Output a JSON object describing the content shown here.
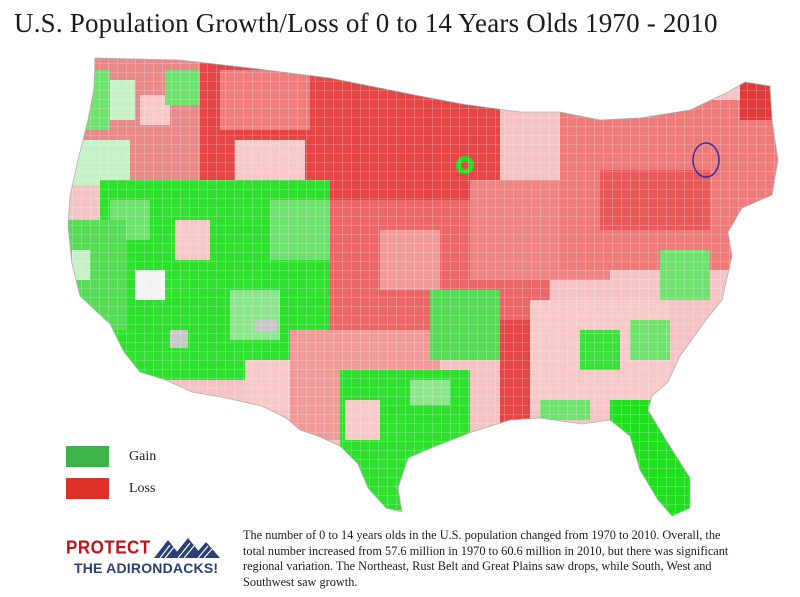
{
  "title": "U.S. Population Growth/Loss of 0 to 14 Years Olds 1970 - 2010",
  "legend": {
    "items": [
      {
        "label": "Gain",
        "color": "#3db34a"
      },
      {
        "label": "Loss",
        "color": "#e0302a"
      }
    ]
  },
  "logo": {
    "line1": "PROTECT",
    "line2": "THE ADIRONDACKS!",
    "colors": {
      "primary": "#c1121a",
      "secondary": "#2a3f73"
    }
  },
  "caption": "The number of 0 to 14 years olds in the U.S. population changed from 1970 to 2010. Overall, the total number increased from 57.6 million in 1970 to 60.6 million in 2010, but there was significant regional variation. The Northeast, Rust Belt and Great Plains saw drops, while South, West and Southwest saw growth.",
  "map_colors": {
    "strong_gain": "#1fe01f",
    "gain": "#6fe26f",
    "light_gain": "#c7f2c7",
    "neutral": "#f3f3f3",
    "light_loss": "#f7c9c9",
    "loss": "#ef7d7d",
    "strong_loss": "#e23a3a",
    "no_data": "#c8c8c8",
    "highlight": "#3030a0"
  }
}
